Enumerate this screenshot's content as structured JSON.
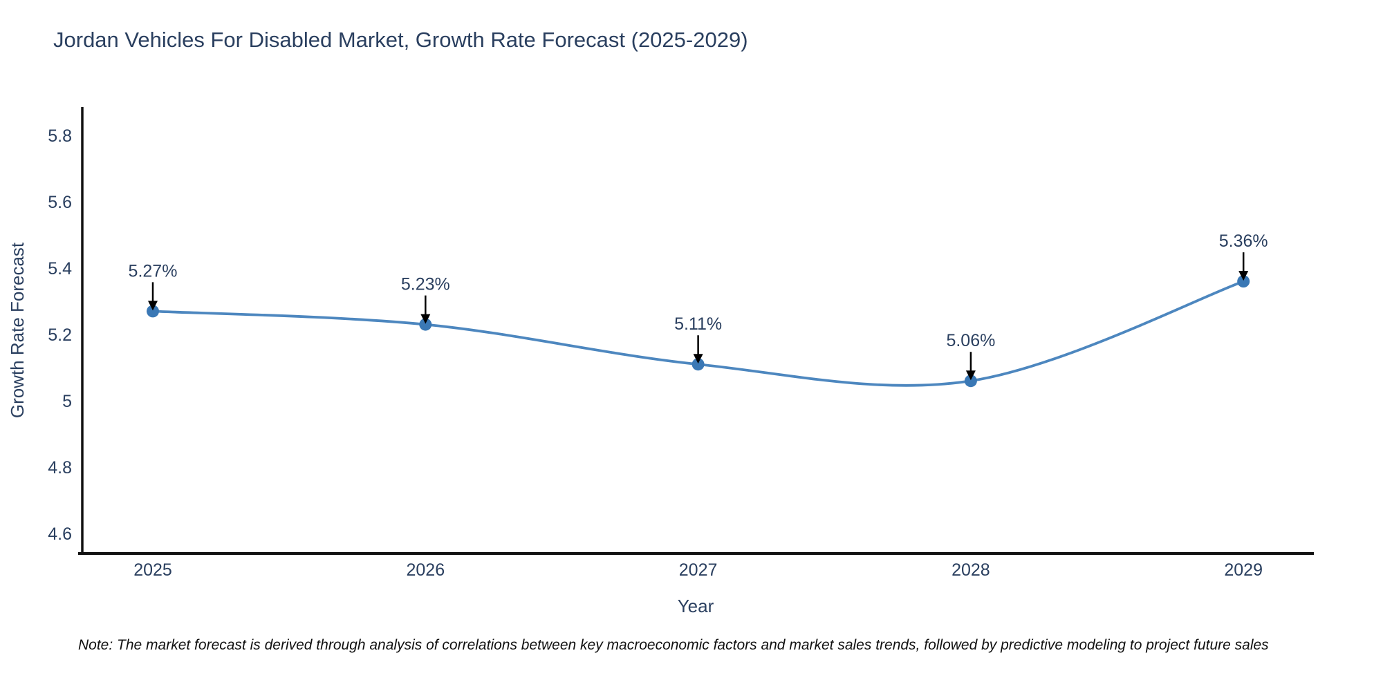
{
  "chart": {
    "title": "Jordan Vehicles For Disabled Market, Growth Rate Forecast (2025-2029)",
    "xlabel": "Year",
    "ylabel": "Growth Rate Forecast"
  },
  "note": {
    "text": "Note: The market forecast is derived through analysis of correlations between key macroeconomic factors and market sales trends, followed by predictive modeling to project future sales"
  },
  "chart_data": {
    "type": "line",
    "title": "Jordan Vehicles For Disabled Market, Growth Rate Forecast (2025-2029)",
    "xlabel": "Year",
    "ylabel": "Growth Rate Forecast",
    "x": [
      2025,
      2026,
      2027,
      2028,
      2029
    ],
    "values": [
      5.27,
      5.23,
      5.11,
      5.06,
      5.36
    ],
    "point_labels": [
      "5.27%",
      "5.23%",
      "5.11%",
      "5.06%",
      "5.36%"
    ],
    "xtick_labels": [
      "2025",
      "2026",
      "2027",
      "2028",
      "2029"
    ],
    "yticks": [
      5.8,
      5.6,
      5.4,
      5.2,
      5,
      4.8,
      4.6
    ],
    "ytick_labels": [
      "5.8",
      "5.6",
      "5.4",
      "5.2",
      "5",
      "4.8",
      "4.6"
    ],
    "xlim": [
      2025,
      2029
    ],
    "ylim": [
      4.54,
      5.885
    ],
    "grid": false,
    "legend": "none",
    "line_shape": "spline",
    "colors": {
      "line": "#4381bc",
      "marker": "#3a78b5",
      "axis": "#111111",
      "text": "#2a3f5f",
      "arrow": "#000000",
      "background": "#ffffff"
    }
  }
}
